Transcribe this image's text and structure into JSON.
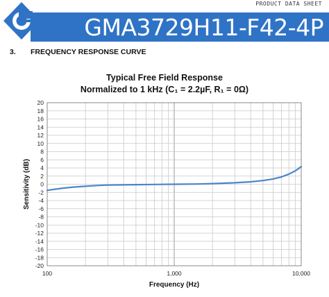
{
  "header": {
    "doc_label": "PRODUCT DATA SHEET",
    "model": "GMA3729H11-F42-4P",
    "brand_color": "#2f73c6"
  },
  "section": {
    "number": "3.",
    "title": "FREQUENCY RESPONSE CURVE"
  },
  "chart_data": {
    "type": "line",
    "title": "Typical Free Field Response",
    "subtitle": "Normalized to 1 kHz (C₁ = 2.2µF, R₁ = 0Ω)",
    "xlabel": "Frequency (Hz)",
    "ylabel": "Sensitivity (dB)",
    "x_scale": "log",
    "xlim": [
      100,
      10000
    ],
    "ylim": [
      -20,
      20
    ],
    "x_tick_labels": [
      {
        "value": 100,
        "label": "100"
      },
      {
        "value": 1000,
        "label": "1,000"
      },
      {
        "value": 10000,
        "label": "10,000"
      }
    ],
    "y_ticks": [
      20,
      18,
      16,
      14,
      12,
      10,
      8,
      6,
      4,
      2,
      0,
      -2,
      -4,
      -6,
      -8,
      -10,
      -12,
      -14,
      -16,
      -18,
      -20
    ],
    "grid": true,
    "line_color": "#4a86c8",
    "series": [
      {
        "x": [
          100,
          130,
          160,
          200,
          250,
          300,
          400,
          500,
          700,
          1000,
          1500,
          2000,
          3000,
          4000,
          5000,
          6000,
          7000,
          8000,
          9000,
          10000
        ],
        "values": [
          -1.5,
          -1.0,
          -0.7,
          -0.5,
          -0.3,
          -0.2,
          -0.15,
          -0.1,
          -0.05,
          0,
          0.05,
          0.15,
          0.35,
          0.6,
          0.9,
          1.3,
          1.8,
          2.5,
          3.3,
          4.3
        ]
      }
    ]
  }
}
